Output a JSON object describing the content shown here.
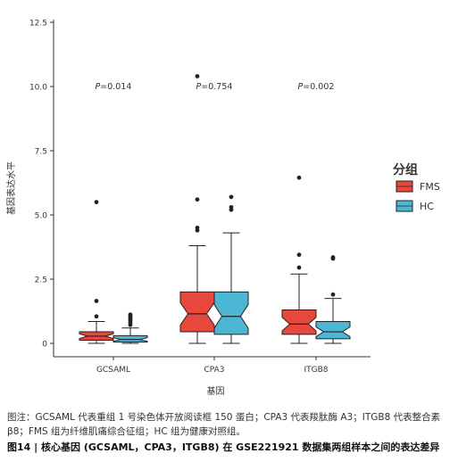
{
  "chart_data": {
    "type": "boxplot",
    "xlabel": "基因",
    "ylabel": "基因表达水平",
    "ylim": [
      0,
      12.5
    ],
    "yticks": [
      "0",
      "2.5",
      "5.0",
      "7.5",
      "10.0",
      "12.5"
    ],
    "categories": [
      "GCSAML",
      "CPA3",
      "ITGB8"
    ],
    "pvalues": [
      "0.014",
      "0.754",
      "0.002"
    ],
    "p_prefix": "P",
    "legend_title": "分组",
    "legend_position": "right",
    "grid": false,
    "series": [
      {
        "name": "FMS",
        "color": "#e8483c",
        "boxes": [
          {
            "whisker_low": 0.0,
            "q1": 0.12,
            "median": 0.28,
            "q3": 0.45,
            "whisker_high": 0.85,
            "outliers": [
              1.05,
              1.65,
              5.5
            ]
          },
          {
            "whisker_low": 0.0,
            "q1": 0.45,
            "median": 1.15,
            "q3": 2.0,
            "whisker_high": 3.8,
            "outliers": [
              4.4,
              4.5,
              5.6,
              10.4
            ]
          },
          {
            "whisker_low": 0.0,
            "q1": 0.35,
            "median": 0.75,
            "q3": 1.3,
            "whisker_high": 2.7,
            "outliers": [
              2.95,
              3.45,
              6.45
            ]
          }
        ]
      },
      {
        "name": "HC",
        "color": "#4bb7d4",
        "boxes": [
          {
            "whisker_low": 0.0,
            "q1": 0.05,
            "median": 0.15,
            "q3": 0.3,
            "whisker_high": 0.6,
            "outliers": [
              0.72,
              0.8,
              0.88,
              0.95,
              1.0,
              1.08,
              1.12
            ]
          },
          {
            "whisker_low": 0.0,
            "q1": 0.35,
            "median": 1.05,
            "q3": 2.0,
            "whisker_high": 4.3,
            "outliers": [
              5.2,
              5.3,
              5.7
            ]
          },
          {
            "whisker_low": 0.0,
            "q1": 0.18,
            "median": 0.45,
            "q3": 0.85,
            "whisker_high": 1.75,
            "outliers": [
              1.9,
              3.3,
              3.35
            ]
          }
        ]
      }
    ]
  },
  "note": "图注：GCSAML 代表重组 1 号染色体开放阅读框 150 蛋白；CPA3 代表羧肽酶 A3；ITGB8 代表整合素 β8；FMS 组为纤维肌痛综合征组；HC 组为健康对照组。",
  "caption": "图14 | 核心基因 (GCSAML，CPA3，ITGB8) 在 GSE221921 数据集两组样本之间的表达差异"
}
